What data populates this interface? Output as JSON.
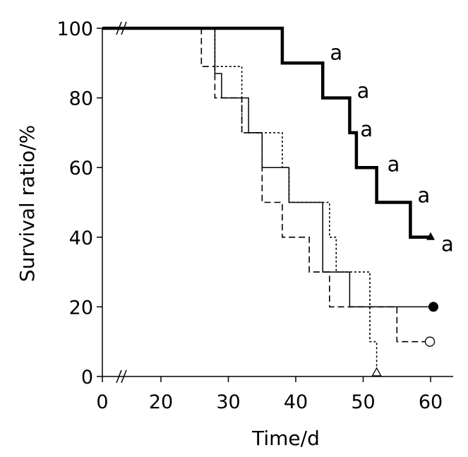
{
  "chart_data": {
    "type": "line",
    "subtype": "kaplan-meier step survival curves",
    "xlabel": "Time/d",
    "ylabel": "Survival ratio/%",
    "xlim": [
      0,
      63
    ],
    "ylim": [
      0,
      100
    ],
    "axis_break": "between 0 and 20 on the x-axis (drawn as // marks)",
    "xticks": [
      "0",
      "20",
      "30",
      "40",
      "50",
      "60"
    ],
    "yticks": [
      "0",
      "20",
      "40",
      "60",
      "80",
      "100"
    ],
    "grid": false,
    "legend": "none",
    "series": [
      {
        "style": "thick-solid",
        "end_marker": "filled-triangle",
        "points": [
          [
            0,
            100
          ],
          [
            38,
            100
          ],
          [
            38,
            90
          ],
          [
            44,
            90
          ],
          [
            44,
            80
          ],
          [
            48,
            80
          ],
          [
            48,
            70
          ],
          [
            49,
            70
          ],
          [
            49,
            60
          ],
          [
            52,
            60
          ],
          [
            52,
            50
          ],
          [
            57,
            50
          ],
          [
            57,
            40
          ],
          [
            60,
            40
          ]
        ]
      },
      {
        "style": "thin-solid",
        "end_marker": "filled-circle",
        "points": [
          [
            0,
            100
          ],
          [
            28,
            100
          ],
          [
            28,
            87
          ],
          [
            29,
            87
          ],
          [
            29,
            80
          ],
          [
            33,
            80
          ],
          [
            33,
            70
          ],
          [
            35,
            70
          ],
          [
            35,
            60
          ],
          [
            39,
            60
          ],
          [
            39,
            50
          ],
          [
            44,
            50
          ],
          [
            44,
            30
          ],
          [
            48,
            30
          ],
          [
            48,
            20
          ],
          [
            60,
            20
          ]
        ]
      },
      {
        "style": "dashed",
        "end_marker": "open-circle",
        "points": [
          [
            0,
            100
          ],
          [
            26,
            100
          ],
          [
            26,
            89
          ],
          [
            28,
            89
          ],
          [
            28,
            80
          ],
          [
            32,
            80
          ],
          [
            32,
            70
          ],
          [
            35,
            70
          ],
          [
            35,
            50
          ],
          [
            38,
            50
          ],
          [
            38,
            40
          ],
          [
            42,
            40
          ],
          [
            42,
            30
          ],
          [
            45,
            30
          ],
          [
            45,
            20
          ],
          [
            55,
            20
          ],
          [
            55,
            10
          ],
          [
            60,
            10
          ]
        ]
      },
      {
        "style": "dotted",
        "end_marker": "open-triangle",
        "points": [
          [
            0,
            100
          ],
          [
            28,
            100
          ],
          [
            28,
            89
          ],
          [
            32,
            89
          ],
          [
            32,
            70
          ],
          [
            38,
            70
          ],
          [
            38,
            60
          ],
          [
            39,
            60
          ],
          [
            39,
            50
          ],
          [
            45,
            50
          ],
          [
            45,
            40
          ],
          [
            46,
            40
          ],
          [
            46,
            30
          ],
          [
            51,
            30
          ],
          [
            51,
            10
          ],
          [
            52,
            10
          ],
          [
            52,
            0
          ]
        ]
      }
    ],
    "annotations": [
      {
        "text": "a",
        "x": 46,
        "y": 93
      },
      {
        "text": "a",
        "x": 50,
        "y": 82
      },
      {
        "text": "a",
        "x": 50.5,
        "y": 71
      },
      {
        "text": "a",
        "x": 54.5,
        "y": 61
      },
      {
        "text": "a",
        "x": 59,
        "y": 52
      },
      {
        "text": "a",
        "x": 62.5,
        "y": 38
      }
    ]
  }
}
